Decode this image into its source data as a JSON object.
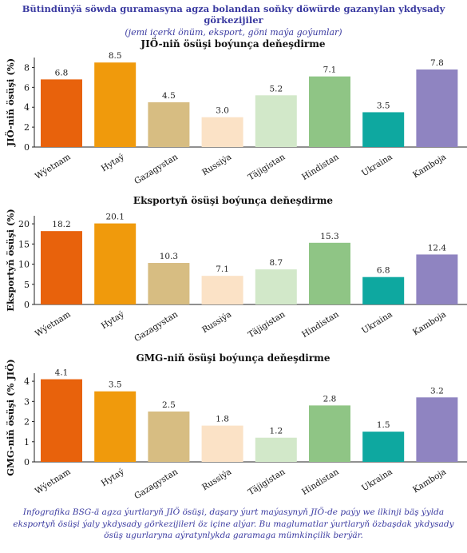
{
  "title": "Bütindünýä söwda guramasyna agza bolandan soňky döwürde gazanylan ykdysady görkezijiler",
  "subtitle": "(jemi içerki önüm, eksport, göni maýa goýumlar)",
  "footer": "Infografika BSG-ä agza ýurtlaryň JIÖ ösüşi, daşary ýurt maýasynyň JIÖ-de paýy we ilkinji bäş ýylda eksportyň ösüşi ýaly ykdysady görkezijileri öz içine alýar. Bu maglumatlar ýurtlaryň özbaşdak ykdysady ösüş ugurlaryna aýratynlykda garamaga mümkinçilik berýär.",
  "colors": {
    "title": "#3a3aa0",
    "bars": [
      "#e8620c",
      "#f09a0c",
      "#d7bd82",
      "#fbe2c6",
      "#d2e8c9",
      "#8fc585",
      "#0ea8a0",
      "#8f84c1"
    ]
  },
  "chart_data": [
    {
      "type": "bar",
      "title": "JIÖ-niň ösüşi boýunça deňeşdirme",
      "ylabel": "JIÖ-niň ösüşi (%)",
      "xlabel": "",
      "categories": [
        "Wýetnam",
        "Hytaý",
        "Gazagystan",
        "Russiýa",
        "Täjigistan",
        "Hindistan",
        "Ukraina",
        "Kamboja"
      ],
      "values": [
        6.8,
        8.5,
        4.5,
        3.0,
        5.2,
        7.1,
        3.5,
        7.8
      ],
      "value_labels": [
        "6.8",
        "8.5",
        "4.5",
        "3.0",
        "5.2",
        "7.1",
        "3.5",
        "7.8"
      ],
      "yticks": [
        "0",
        "2",
        "4",
        "6",
        "8"
      ],
      "ylim": [
        0,
        9
      ],
      "grid": false
    },
    {
      "type": "bar",
      "title": "Eksportyň ösüşi boýunça deňeşdirme",
      "ylabel": "Eksportyň ösüşi (%)",
      "xlabel": "",
      "categories": [
        "Wýetnam",
        "Hytaý",
        "Gazagystan",
        "Russiýa",
        "Täjigistan",
        "Hindistan",
        "Ukraina",
        "Kamboja"
      ],
      "values": [
        18.2,
        20.1,
        10.3,
        7.1,
        8.7,
        15.3,
        6.8,
        12.4
      ],
      "value_labels": [
        "18.2",
        "20.1",
        "10.3",
        "7.1",
        "8.7",
        "15.3",
        "6.8",
        "12.4"
      ],
      "yticks": [
        "0",
        "5",
        "10",
        "15",
        "20"
      ],
      "ylim": [
        0,
        22
      ],
      "grid": false
    },
    {
      "type": "bar",
      "title": "GMG-niň ösüşi boýunça deňeşdirme",
      "ylabel": "GMG-niň ösüşi (% JIÖ)",
      "xlabel": "",
      "categories": [
        "Wýetnam",
        "Hytaý",
        "Gazagystan",
        "Russiýa",
        "Täjigistan",
        "Hindistan",
        "Ukraina",
        "Kamboja"
      ],
      "values": [
        4.1,
        3.5,
        2.5,
        1.8,
        1.2,
        2.8,
        1.5,
        3.2
      ],
      "value_labels": [
        "4.1",
        "3.5",
        "2.5",
        "1.8",
        "1.2",
        "2.8",
        "1.5",
        "3.2"
      ],
      "yticks": [
        "0",
        "1",
        "2",
        "3",
        "4"
      ],
      "ylim": [
        0,
        4.4
      ],
      "grid": false
    }
  ]
}
